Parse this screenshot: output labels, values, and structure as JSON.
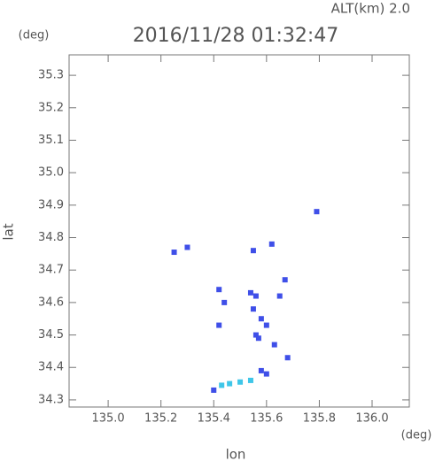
{
  "chart_data": {
    "type": "scatter",
    "title": "2016/11/28 01:32:47",
    "subtitle": "ALT(km) 2.0",
    "x_label": "lon",
    "y_label": "lat",
    "x_unit": "(deg)",
    "y_unit": "(deg)",
    "xlim": [
      134.852,
      136.141
    ],
    "ylim": [
      34.278,
      35.363
    ],
    "xticks": [
      {
        "value": 135,
        "label": "135.0"
      },
      135.2,
      135.4,
      135.6,
      135.8,
      {
        "value": 136,
        "label": "136.0"
      }
    ],
    "yticks": [
      34.3,
      34.4,
      34.5,
      34.6,
      34.7,
      34.8,
      34.9,
      {
        "value": 35,
        "label": "35.0"
      },
      35.1,
      35.2,
      35.3
    ],
    "series": [
      {
        "color": "#3f4fe8",
        "x": [
          135.25,
          135.3,
          135.79,
          135.62,
          135.55,
          135.56,
          135.54,
          135.42,
          135.44,
          135.58,
          135.56,
          135.6,
          135.63,
          135.65,
          135.67,
          135.68,
          135.6,
          135.58,
          135.42,
          135.4,
          135.55,
          135.57
        ],
        "values": [
          34.755,
          34.77,
          34.88,
          34.78,
          34.76,
          34.62,
          34.63,
          34.64,
          34.6,
          34.55,
          34.5,
          34.53,
          34.47,
          34.62,
          34.67,
          34.43,
          34.38,
          34.39,
          34.53,
          34.33,
          34.58,
          34.49
        ]
      },
      {
        "color": "#3fc6e8",
        "x": [
          135.43,
          135.46,
          135.5,
          135.54
        ],
        "values": [
          34.345,
          34.35,
          34.355,
          34.36
        ]
      }
    ]
  }
}
